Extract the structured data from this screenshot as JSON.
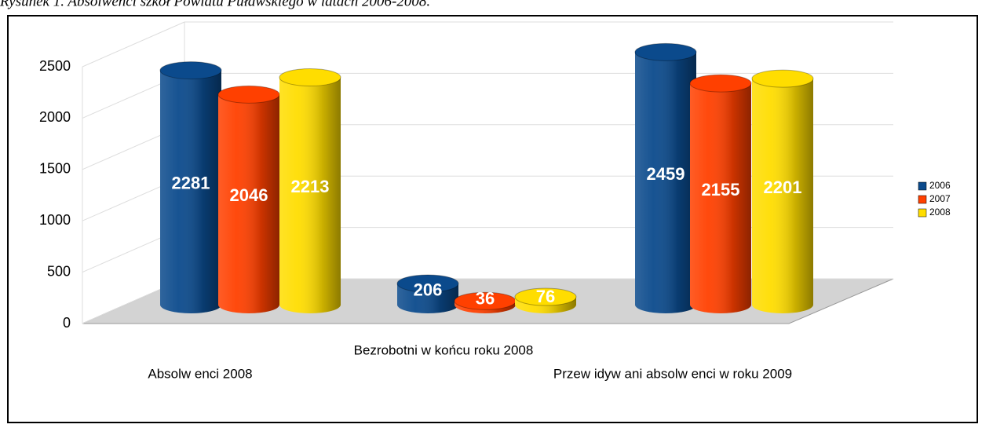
{
  "chart_data": {
    "type": "bar",
    "title": "Rysunek 1. Absolwenci szkół Powiatu Puławskiego w latach 2006-2008.",
    "categories": [
      "Absolw enci 2008",
      "Bezrobotni w  końcu roku 2008",
      "Przew idyw ani absolw enci w  roku 2009"
    ],
    "series": [
      {
        "name": "2006",
        "color": "#0b4a8c",
        "values": [
          2281,
          206,
          2459
        ]
      },
      {
        "name": "2007",
        "color": "#ff4000",
        "values": [
          2046,
          36,
          2155
        ]
      },
      {
        "name": "2008",
        "color": "#ffdd00",
        "values": [
          2213,
          76,
          2201
        ]
      }
    ],
    "ylim": [
      0,
      2500
    ],
    "yticks": [
      0,
      500,
      1000,
      1500,
      2000,
      2500
    ],
    "grid": true,
    "legend": "right"
  }
}
